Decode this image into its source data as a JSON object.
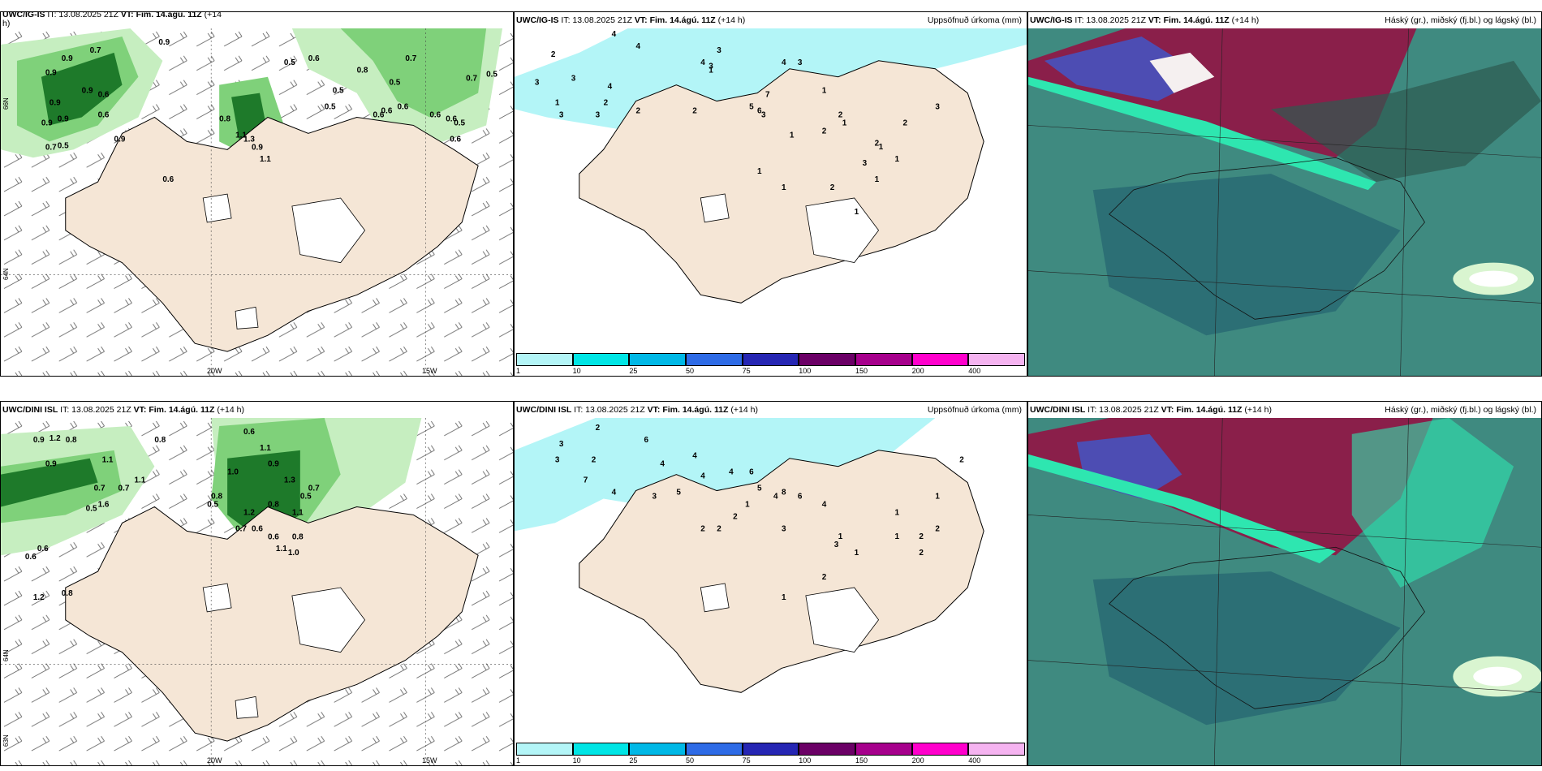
{
  "panels": {
    "top_left": {
      "model": "UWC/IG-IS",
      "it": "IT: 13.08.2025 21Z",
      "vt": "VT: Fim. 14.ágú. 11Z",
      "lead": "(+14",
      "lead2": "h)"
    },
    "top_mid": {
      "model": "UWC/IG-IS",
      "it": "IT: 13.08.2025 21Z",
      "vt": "VT: Fim. 14.ágú. 11Z",
      "lead": "(+14 h)",
      "right": "Uppsöfnuð úrkoma (mm)"
    },
    "top_right": {
      "model": "UWC/IG-IS",
      "it": "IT: 13.08.2025 21Z",
      "vt": "VT: Fim. 14.ágú. 11Z",
      "lead": "(+14 h)",
      "right": "Háský (gr.), miðský (fj.bl.) og lágský (bl.)"
    },
    "bot_left": {
      "model": "UWC/DINI ISL",
      "it": "IT: 13.08.2025 21Z",
      "vt": "VT: Fim. 14.ágú. 11Z",
      "lead": "(+14 h)"
    },
    "bot_mid": {
      "model": "UWC/DINI ISL",
      "it": "IT: 13.08.2025 21Z",
      "vt": "VT: Fim. 14.ágú. 11Z",
      "lead": "(+14 h)",
      "right": "Uppsöfnuð úrkoma (mm)"
    },
    "bot_right": {
      "model": "UWC/DINI ISL",
      "it": "IT: 13.08.2025 21Z",
      "vt": "VT: Fim. 14.ágú. 11Z",
      "lead": "(+14 h)",
      "right": "Háský (gr.), miðský (fj.bl.) og lágský (bl.)"
    }
  },
  "axes": {
    "lon_20w": "20W",
    "lon_15w": "15W",
    "lat_66n": "66N",
    "lat_64n": "64N",
    "lat_63n": "63N"
  },
  "colorbar": {
    "ticks": [
      "1",
      "10",
      "25",
      "50",
      "75",
      "100",
      "150",
      "200",
      "400"
    ],
    "colors": [
      "#b3f5f7",
      "#00e5e5",
      "#00b8e6",
      "#2e6be6",
      "#2626b3",
      "#6b0066",
      "#a6008c",
      "#ff00cc",
      "#f5b3f0"
    ]
  },
  "colors": {
    "land": "#f5e6d6",
    "sea": "#ffffff",
    "precip_light": "#b3f5f7",
    "green_light": "#c6eec0",
    "green_mid": "#7fd17a",
    "green_dark": "#1e7a2a",
    "cloud_base": "#3f8a80"
  },
  "values": {
    "top_left": [
      "0.9",
      "0.9",
      "0.7",
      "0.9",
      "0.6",
      "0.9",
      "0.9",
      "0.9",
      "0.6",
      "0.9",
      "0.9",
      "0.5",
      "0.7",
      "0.8",
      "1.1",
      "1.3",
      "0.9",
      "1.1",
      "0.6",
      "0.5",
      "0.6",
      "0.5",
      "0.5",
      "0.8",
      "0.6",
      "0.6",
      "0.6",
      "0.7",
      "0.5",
      "0.6",
      "0.6",
      "0.5",
      "0.6",
      "0.7",
      "0.5"
    ],
    "bot_left": [
      "0.9",
      "1.2",
      "0.8",
      "0.9",
      "1.1",
      "0.7",
      "0.5",
      "1.6",
      "1.1",
      "0.8",
      "0.7",
      "0.6",
      "0.6",
      "1.2",
      "0.8",
      "1.0",
      "0.6",
      "1.1",
      "0.9",
      "1.3",
      "1.1",
      "0.5",
      "0.7",
      "0.8",
      "1.0",
      "1.1",
      "1.2",
      "0.7",
      "0.8",
      "0.6",
      "0.6",
      "0.8",
      "0.5"
    ],
    "top_mid": [
      "3",
      "2",
      "3",
      "4",
      "4",
      "4",
      "3",
      "3",
      "1",
      "3",
      "2",
      "2",
      "1",
      "2",
      "3",
      "4",
      "5",
      "6",
      "7",
      "4",
      "3",
      "3",
      "1",
      "1",
      "1",
      "2",
      "2",
      "3",
      "2",
      "1",
      "1",
      "1",
      "2",
      "3",
      "1",
      "2",
      "1",
      "1"
    ],
    "bot_mid": [
      "2",
      "3",
      "3",
      "2",
      "6",
      "4",
      "4",
      "4",
      "5",
      "3",
      "7",
      "4",
      "4",
      "6",
      "5",
      "4",
      "8",
      "6",
      "4",
      "3",
      "3",
      "2",
      "2",
      "2",
      "1",
      "1",
      "1",
      "1",
      "2",
      "1",
      "2",
      "2",
      "1",
      "2",
      "2",
      "1"
    ]
  }
}
